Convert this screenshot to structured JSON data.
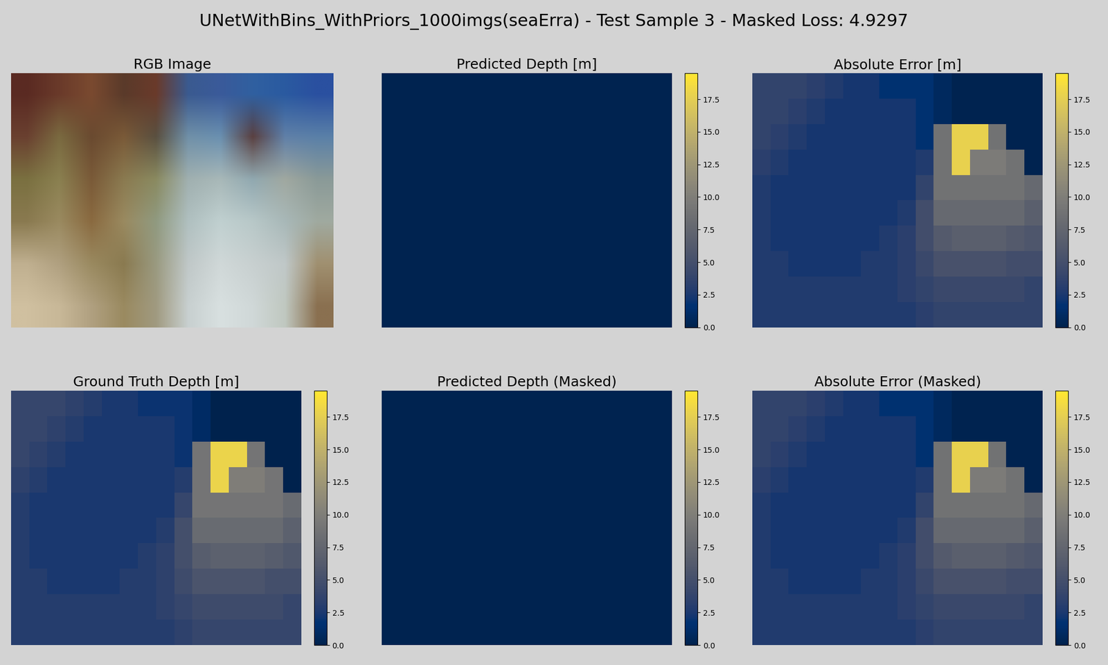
{
  "chart_data": {
    "type": "heatmap",
    "title": "UNetWithBins_WithPriors_1000imgs(seaErra) - Test Sample 3 - Masked Loss: 4.9297",
    "color": "cividis",
    "tick_labels": false,
    "color_range": [
      0,
      19.5
    ],
    "color_ticks": [
      {
        "value": 0,
        "label": "0.0"
      },
      {
        "value": 2.5,
        "label": "2.5"
      },
      {
        "value": 5,
        "label": "5.0"
      },
      {
        "value": 7.5,
        "label": "7.5"
      },
      {
        "value": 10,
        "label": "10.0"
      },
      {
        "value": 12.5,
        "label": "12.5"
      },
      {
        "value": 15,
        "label": "15.0"
      },
      {
        "value": 17.5,
        "label": "17.5"
      }
    ],
    "panels": [
      {
        "title": "RGB Image",
        "type": "image",
        "pixels": [
          [
            "#5a2a22",
            "#6a3a2a",
            "#7a4a30",
            "#5a3a2a",
            "#6a3a2a",
            "#3a5a90",
            "#3a5a9a",
            "#3060a0",
            "#2a5aa0",
            "#2a50a0"
          ],
          [
            "#6a4030",
            "#7a6a40",
            "#6a4a30",
            "#7a5a38",
            "#5a5040",
            "#7090a8",
            "#6a90b0",
            "#5a4040",
            "#6080a8",
            "#5a80a8"
          ],
          [
            "#7a7040",
            "#8a8050",
            "#7a5a38",
            "#8a7a50",
            "#8a8a60",
            "#a0b0b0",
            "#a8b8b8",
            "#90a8b0",
            "#a0a8a0",
            "#8a9a98"
          ],
          [
            "#8a7a50",
            "#9a8a60",
            "#8a6a40",
            "#9a8a60",
            "#909a80",
            "#b0c0c0",
            "#c0d0d0",
            "#b8c8c8",
            "#a8b8b8",
            "#a0aaa0"
          ],
          [
            "#c0b090",
            "#b0a080",
            "#9a8a60",
            "#8a7a50",
            "#9a9a80",
            "#c0c8c8",
            "#d0d8d8",
            "#c8d0d0",
            "#c0c8c8",
            "#a09070"
          ],
          [
            "#d0c0a0",
            "#c8b898",
            "#b0a080",
            "#9a8a60",
            "#a09a80",
            "#c8d0d0",
            "#d8e0e0",
            "#d0d8d8",
            "#c0c8c0",
            "#8a7050"
          ]
        ]
      },
      {
        "title": "Predicted Depth [m]",
        "type": "heatmap",
        "cells": [
          [
            0.2,
            0.2,
            0.2,
            0.2,
            0.2,
            0.2,
            0.2,
            0.2,
            0.2,
            0.2,
            0.2,
            0.2,
            0.2,
            0.2,
            0.2,
            0.2
          ],
          [
            0.2,
            0.2,
            0.2,
            0.2,
            0.2,
            0.2,
            0.2,
            0.2,
            0.2,
            0.2,
            0.2,
            0.2,
            0.2,
            0.2,
            0.2,
            0.2
          ],
          [
            0.2,
            0.2,
            0.2,
            0.2,
            0.2,
            0.2,
            0.2,
            0.2,
            0.2,
            0.2,
            0.2,
            0.2,
            0.2,
            0.2,
            0.2,
            0.2
          ],
          [
            0.2,
            0.2,
            0.2,
            0.2,
            0.2,
            0.2,
            0.2,
            0.2,
            0.2,
            0.2,
            0.2,
            0.2,
            0.2,
            0.2,
            0.2,
            0.2
          ],
          [
            0.2,
            0.2,
            0.2,
            0.2,
            0.2,
            0.2,
            0.2,
            0.2,
            0.2,
            0.2,
            0.2,
            0.2,
            0.2,
            0.2,
            0.2,
            0.2
          ],
          [
            0.2,
            0.2,
            0.2,
            0.2,
            0.2,
            0.2,
            0.2,
            0.2,
            0.2,
            0.2,
            0.2,
            0.2,
            0.2,
            0.2,
            0.2,
            0.2
          ],
          [
            0.2,
            0.2,
            0.2,
            0.2,
            0.2,
            0.2,
            0.2,
            0.2,
            0.2,
            0.2,
            0.2,
            0.2,
            0.2,
            0.2,
            0.2,
            0.2
          ],
          [
            0.2,
            0.2,
            0.2,
            0.2,
            0.2,
            0.2,
            0.2,
            0.2,
            0.2,
            0.2,
            0.2,
            0.2,
            0.2,
            0.2,
            0.2,
            0.2
          ],
          [
            0.2,
            0.2,
            0.2,
            0.2,
            0.2,
            0.2,
            0.2,
            0.2,
            0.2,
            0.2,
            0.2,
            0.2,
            0.2,
            0.2,
            0.2,
            0.2
          ],
          [
            0.2,
            0.2,
            0.2,
            0.2,
            0.2,
            0.2,
            0.2,
            0.2,
            0.2,
            0.2,
            0.2,
            0.2,
            0.2,
            0.2,
            0.2,
            0.2
          ]
        ]
      },
      {
        "title": "Absolute Error [m]",
        "type": "heatmap",
        "cells": [
          [
            3.8,
            3.8,
            3.8,
            3.3,
            2.8,
            2.3,
            2.3,
            1.8,
            1.8,
            1.8,
            0.8,
            0.2,
            0.2,
            0.2,
            0.2,
            0.2
          ],
          [
            3.8,
            3.8,
            3.3,
            2.8,
            2.3,
            2.3,
            2.3,
            2.3,
            2.3,
            1.8,
            0.8,
            0.2,
            0.2,
            0.2,
            0.2,
            0.2
          ],
          [
            3.8,
            3.3,
            2.8,
            2.3,
            2.3,
            2.3,
            2.3,
            2.3,
            2.3,
            1.8,
            8.8,
            17.8,
            17.8,
            8.8,
            0.2,
            0.2
          ],
          [
            3.3,
            2.8,
            2.3,
            2.3,
            2.3,
            2.3,
            2.3,
            2.3,
            2.3,
            2.8,
            8.8,
            17.8,
            9.8,
            9.8,
            8.8,
            0.2
          ],
          [
            2.8,
            2.3,
            2.3,
            2.3,
            2.3,
            2.3,
            2.3,
            2.3,
            2.3,
            3.8,
            8.8,
            8.8,
            8.8,
            8.8,
            8.8,
            7.8
          ],
          [
            2.8,
            2.3,
            2.3,
            2.3,
            2.3,
            2.3,
            2.3,
            2.3,
            2.8,
            4.8,
            7.8,
            7.8,
            7.8,
            7.8,
            7.8,
            6.8
          ],
          [
            2.8,
            2.3,
            2.3,
            2.3,
            2.3,
            2.3,
            2.3,
            2.8,
            3.3,
            4.8,
            6.3,
            6.8,
            6.8,
            6.8,
            6.3,
            5.8
          ],
          [
            2.8,
            2.8,
            2.3,
            2.3,
            2.3,
            2.3,
            2.8,
            2.8,
            3.3,
            4.3,
            5.3,
            5.3,
            5.3,
            5.3,
            4.8,
            4.8
          ],
          [
            2.8,
            2.8,
            2.8,
            2.8,
            2.8,
            2.8,
            2.8,
            2.8,
            3.3,
            3.8,
            4.3,
            4.3,
            4.3,
            4.3,
            4.3,
            3.8
          ],
          [
            2.8,
            2.8,
            2.8,
            2.8,
            2.8,
            2.8,
            2.8,
            2.8,
            2.8,
            3.3,
            3.8,
            3.8,
            3.8,
            3.8,
            3.8,
            3.8
          ]
        ]
      },
      {
        "title": "Ground Truth Depth [m]",
        "type": "heatmap",
        "cells": [
          [
            4,
            4,
            4,
            3.5,
            3,
            2.5,
            2.5,
            2,
            2,
            2,
            1,
            0,
            0,
            0,
            0,
            0
          ],
          [
            4,
            4,
            3.5,
            3,
            2.5,
            2.5,
            2.5,
            2.5,
            2.5,
            2,
            1,
            0,
            0,
            0,
            0,
            0
          ],
          [
            4,
            3.5,
            3,
            2.5,
            2.5,
            2.5,
            2.5,
            2.5,
            2.5,
            2,
            9,
            18,
            18,
            9,
            0,
            0
          ],
          [
            3.5,
            3,
            2.5,
            2.5,
            2.5,
            2.5,
            2.5,
            2.5,
            2.5,
            3,
            9,
            18,
            10,
            10,
            9,
            0
          ],
          [
            3,
            2.5,
            2.5,
            2.5,
            2.5,
            2.5,
            2.5,
            2.5,
            2.5,
            4,
            9,
            9,
            9,
            9,
            9,
            8
          ],
          [
            3,
            2.5,
            2.5,
            2.5,
            2.5,
            2.5,
            2.5,
            2.5,
            3,
            5,
            8,
            8,
            8,
            8,
            8,
            7
          ],
          [
            3,
            2.5,
            2.5,
            2.5,
            2.5,
            2.5,
            2.5,
            3,
            3.5,
            5,
            6.5,
            7,
            7,
            7,
            6.5,
            6
          ],
          [
            3,
            3,
            2.5,
            2.5,
            2.5,
            2.5,
            3,
            3,
            3.5,
            4.5,
            5.5,
            5.5,
            5.5,
            5.5,
            5,
            5
          ],
          [
            3,
            3,
            3,
            3,
            3,
            3,
            3,
            3,
            3.5,
            4,
            4.5,
            4.5,
            4.5,
            4.5,
            4.5,
            4
          ],
          [
            3,
            3,
            3,
            3,
            3,
            3,
            3,
            3,
            3,
            3.5,
            4,
            4,
            4,
            4,
            4,
            4
          ]
        ]
      },
      {
        "title": "Predicted Depth (Masked)",
        "type": "heatmap",
        "cells": [
          [
            0.2,
            0.2,
            0.2,
            0.2,
            0.2,
            0.2,
            0.2,
            0.2,
            0.2,
            0.2,
            0.2,
            0.2,
            0.2,
            0.2,
            0.2,
            0.2
          ],
          [
            0.2,
            0.2,
            0.2,
            0.2,
            0.2,
            0.2,
            0.2,
            0.2,
            0.2,
            0.2,
            0.2,
            0.2,
            0.2,
            0.2,
            0.2,
            0.2
          ],
          [
            0.2,
            0.2,
            0.2,
            0.2,
            0.2,
            0.2,
            0.2,
            0.2,
            0.2,
            0.2,
            0.2,
            0.2,
            0.2,
            0.2,
            0.2,
            0.2
          ],
          [
            0.2,
            0.2,
            0.2,
            0.2,
            0.2,
            0.2,
            0.2,
            0.2,
            0.2,
            0.2,
            0.2,
            0.2,
            0.2,
            0.2,
            0.2,
            0.2
          ],
          [
            0.2,
            0.2,
            0.2,
            0.2,
            0.2,
            0.2,
            0.2,
            0.2,
            0.2,
            0.2,
            0.2,
            0.2,
            0.2,
            0.2,
            0.2,
            0.2
          ],
          [
            0.2,
            0.2,
            0.2,
            0.2,
            0.2,
            0.2,
            0.2,
            0.2,
            0.2,
            0.2,
            0.2,
            0.2,
            0.2,
            0.2,
            0.2,
            0.2
          ],
          [
            0.2,
            0.2,
            0.2,
            0.2,
            0.2,
            0.2,
            0.2,
            0.2,
            0.2,
            0.2,
            0.2,
            0.2,
            0.2,
            0.2,
            0.2,
            0.2
          ],
          [
            0.2,
            0.2,
            0.2,
            0.2,
            0.2,
            0.2,
            0.2,
            0.2,
            0.2,
            0.2,
            0.2,
            0.2,
            0.2,
            0.2,
            0.2,
            0.2
          ],
          [
            0.2,
            0.2,
            0.2,
            0.2,
            0.2,
            0.2,
            0.2,
            0.2,
            0.2,
            0.2,
            0.2,
            0.2,
            0.2,
            0.2,
            0.2,
            0.2
          ],
          [
            0.2,
            0.2,
            0.2,
            0.2,
            0.2,
            0.2,
            0.2,
            0.2,
            0.2,
            0.2,
            0.2,
            0.2,
            0.2,
            0.2,
            0.2,
            0.2
          ]
        ]
      },
      {
        "title": "Absolute Error (Masked)",
        "type": "heatmap",
        "cells": [
          [
            3.8,
            3.8,
            3.8,
            3.3,
            2.8,
            2.3,
            2.3,
            1.8,
            1.8,
            1.8,
            0.8,
            0.2,
            0.2,
            0.2,
            0.2,
            0.2
          ],
          [
            3.8,
            3.8,
            3.3,
            2.8,
            2.3,
            2.3,
            2.3,
            2.3,
            2.3,
            1.8,
            0.8,
            0.2,
            0.2,
            0.2,
            0.2,
            0.2
          ],
          [
            3.8,
            3.3,
            2.8,
            2.3,
            2.3,
            2.3,
            2.3,
            2.3,
            2.3,
            1.8,
            8.8,
            17.8,
            17.8,
            8.8,
            0.2,
            0.2
          ],
          [
            3.3,
            2.8,
            2.3,
            2.3,
            2.3,
            2.3,
            2.3,
            2.3,
            2.3,
            2.8,
            8.8,
            17.8,
            9.8,
            9.8,
            8.8,
            0.2
          ],
          [
            2.8,
            2.3,
            2.3,
            2.3,
            2.3,
            2.3,
            2.3,
            2.3,
            2.3,
            3.8,
            8.8,
            8.8,
            8.8,
            8.8,
            8.8,
            7.8
          ],
          [
            2.8,
            2.3,
            2.3,
            2.3,
            2.3,
            2.3,
            2.3,
            2.3,
            2.8,
            4.8,
            7.8,
            7.8,
            7.8,
            7.8,
            7.8,
            6.8
          ],
          [
            2.8,
            2.3,
            2.3,
            2.3,
            2.3,
            2.3,
            2.3,
            2.8,
            3.3,
            4.8,
            6.3,
            6.8,
            6.8,
            6.8,
            6.3,
            5.8
          ],
          [
            2.8,
            2.8,
            2.3,
            2.3,
            2.3,
            2.3,
            2.8,
            2.8,
            3.3,
            4.3,
            5.3,
            5.3,
            5.3,
            5.3,
            4.8,
            4.8
          ],
          [
            2.8,
            2.8,
            2.8,
            2.8,
            2.8,
            2.8,
            2.8,
            2.8,
            3.3,
            3.8,
            4.3,
            4.3,
            4.3,
            4.3,
            4.3,
            3.8
          ],
          [
            2.8,
            2.8,
            2.8,
            2.8,
            2.8,
            2.8,
            2.8,
            2.8,
            2.8,
            3.3,
            3.8,
            3.8,
            3.8,
            3.8,
            3.8,
            3.8
          ]
        ]
      }
    ]
  }
}
